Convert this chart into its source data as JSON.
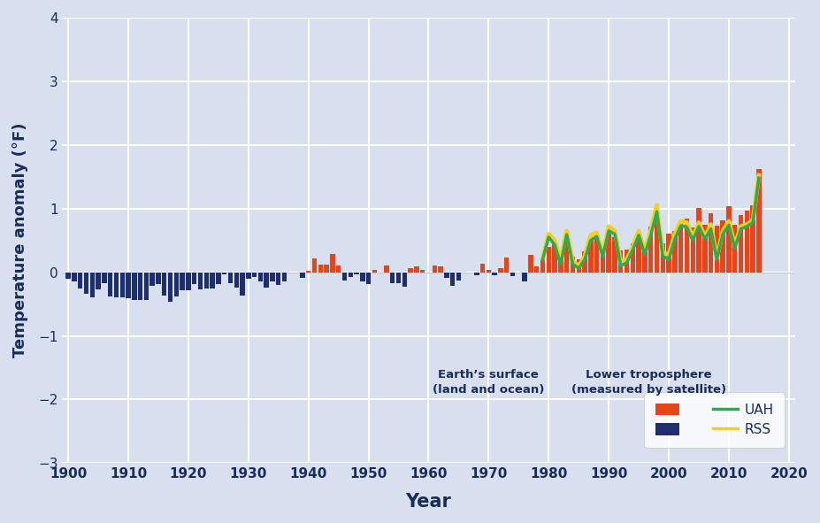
{
  "xlabel": "Year",
  "ylabel": "Temperature anomaly (°F)",
  "bg_color": "#d8dfee",
  "plot_bg_color": "#d8dfee",
  "grid_color": "#ffffff",
  "text_color": "#1a2d5a",
  "ylim": [
    -3,
    4
  ],
  "xlim": [
    1899,
    2021
  ],
  "yticks": [
    -3,
    -2,
    -1,
    0,
    1,
    2,
    3,
    4
  ],
  "xticks": [
    1900,
    1910,
    1920,
    1930,
    1940,
    1950,
    1960,
    1970,
    1980,
    1990,
    2000,
    2010,
    2020
  ],
  "bar_color_pos": "#e8441a",
  "bar_color_neg": "#1f2f6e",
  "uah_color": "#2eab4e",
  "rss_color": "#f0d020",
  "surface_years": [
    1900,
    1901,
    1902,
    1903,
    1904,
    1905,
    1906,
    1907,
    1908,
    1909,
    1910,
    1911,
    1912,
    1913,
    1914,
    1915,
    1916,
    1917,
    1918,
    1919,
    1920,
    1921,
    1922,
    1923,
    1924,
    1925,
    1926,
    1927,
    1928,
    1929,
    1930,
    1931,
    1932,
    1933,
    1934,
    1935,
    1936,
    1937,
    1938,
    1939,
    1940,
    1941,
    1942,
    1943,
    1944,
    1945,
    1946,
    1947,
    1948,
    1949,
    1950,
    1951,
    1952,
    1953,
    1954,
    1955,
    1956,
    1957,
    1958,
    1959,
    1960,
    1961,
    1962,
    1963,
    1964,
    1965,
    1966,
    1967,
    1968,
    1969,
    1970,
    1971,
    1972,
    1973,
    1974,
    1975,
    1976,
    1977,
    1978,
    1979,
    1980,
    1981,
    1982,
    1983,
    1984,
    1985,
    1986,
    1987,
    1988,
    1989,
    1990,
    1991,
    1992,
    1993,
    1994,
    1995,
    1996,
    1997,
    1998,
    1999,
    2000,
    2001,
    2002,
    2003,
    2004,
    2005,
    2006,
    2007,
    2008,
    2009,
    2010,
    2011,
    2012,
    2013,
    2014,
    2015
  ],
  "surface_vals": [
    -0.1,
    -0.14,
    -0.26,
    -0.34,
    -0.4,
    -0.27,
    -0.17,
    -0.38,
    -0.4,
    -0.39,
    -0.41,
    -0.43,
    -0.43,
    -0.44,
    -0.22,
    -0.18,
    -0.37,
    -0.46,
    -0.38,
    -0.29,
    -0.29,
    -0.19,
    -0.27,
    -0.25,
    -0.26,
    -0.19,
    -0.04,
    -0.17,
    -0.24,
    -0.37,
    -0.1,
    -0.07,
    -0.14,
    -0.24,
    -0.15,
    -0.2,
    -0.14,
    -0.01,
    -0.01,
    -0.09,
    0.02,
    0.21,
    0.12,
    0.12,
    0.29,
    0.1,
    -0.13,
    -0.07,
    -0.04,
    -0.15,
    -0.18,
    0.04,
    -0.01,
    0.1,
    -0.17,
    -0.17,
    -0.23,
    0.07,
    0.09,
    0.04,
    -0.01,
    0.1,
    0.09,
    -0.09,
    -0.21,
    -0.13,
    -0.01,
    -0.01,
    -0.05,
    0.14,
    0.04,
    -0.05,
    0.07,
    0.23,
    -0.06,
    -0.01,
    -0.14,
    0.27,
    0.09,
    0.23,
    0.4,
    0.48,
    0.25,
    0.48,
    0.25,
    0.2,
    0.33,
    0.55,
    0.59,
    0.33,
    0.61,
    0.55,
    0.34,
    0.36,
    0.46,
    0.63,
    0.43,
    0.72,
    0.98,
    0.45,
    0.6,
    0.65,
    0.79,
    0.84,
    0.7,
    1.01,
    0.75,
    0.93,
    0.73,
    0.82,
    1.04,
    0.75,
    0.9,
    0.97,
    1.05,
    1.62
  ],
  "sat_years": [
    1979,
    1980,
    1981,
    1982,
    1983,
    1984,
    1985,
    1986,
    1987,
    1988,
    1989,
    1990,
    1991,
    1992,
    1993,
    1994,
    1995,
    1996,
    1997,
    1998,
    1999,
    2000,
    2001,
    2002,
    2003,
    2004,
    2005,
    2006,
    2007,
    2008,
    2009,
    2010,
    2011,
    2012,
    2013,
    2014,
    2015
  ],
  "uah_vals": [
    0.2,
    0.55,
    0.43,
    0.12,
    0.59,
    0.13,
    0.06,
    0.2,
    0.5,
    0.56,
    0.25,
    0.65,
    0.6,
    0.1,
    0.15,
    0.35,
    0.58,
    0.28,
    0.58,
    0.95,
    0.25,
    0.2,
    0.52,
    0.73,
    0.71,
    0.5,
    0.72,
    0.52,
    0.68,
    0.2,
    0.6,
    0.74,
    0.38,
    0.68,
    0.72,
    0.78,
    1.48
  ],
  "rss_vals": [
    0.22,
    0.6,
    0.5,
    0.18,
    0.65,
    0.17,
    0.1,
    0.25,
    0.58,
    0.62,
    0.28,
    0.72,
    0.65,
    0.15,
    0.2,
    0.4,
    0.65,
    0.32,
    0.65,
    1.05,
    0.3,
    0.28,
    0.6,
    0.8,
    0.78,
    0.55,
    0.78,
    0.55,
    0.75,
    0.22,
    0.65,
    0.8,
    0.42,
    0.72,
    0.75,
    0.82,
    1.52
  ],
  "legend_title_surface": "Earth’s surface\n(land and ocean)",
  "legend_title_lower": "Lower troposphere\n(measured by satellite)",
  "legend_uah": "UAH",
  "legend_rss": "RSS"
}
